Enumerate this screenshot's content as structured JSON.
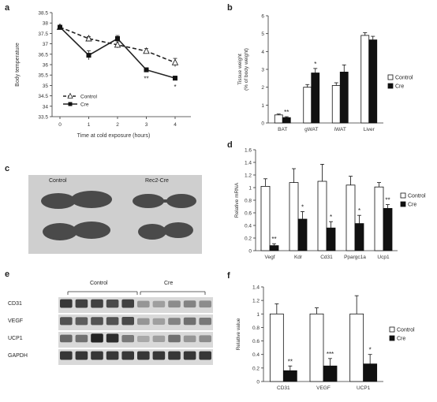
{
  "panel_labels": {
    "a": "a",
    "b": "b",
    "c": "c",
    "d": "d",
    "e": "e",
    "f": "f"
  },
  "chart_data": [
    {
      "id": "a",
      "type": "line",
      "xlabel": "Time at cold exposure (hours)",
      "ylabel": "Body temperature",
      "x": [
        0,
        1,
        2,
        3,
        4
      ],
      "xticks": [
        "0",
        "1",
        "2",
        "3",
        "4"
      ],
      "ylim": [
        33.5,
        38.5
      ],
      "yticks": [
        "33.5",
        "34",
        "34.5",
        "35",
        "35.5",
        "36",
        "36.5",
        "37",
        "37.5",
        "38",
        "38.5"
      ],
      "series": [
        {
          "name": "Control",
          "values": [
            37.8,
            37.25,
            36.95,
            36.65,
            36.1
          ],
          "errors": [
            0.08,
            0.1,
            0.15,
            0.12,
            0.2
          ],
          "style": "dashed",
          "marker": "triangle-open"
        },
        {
          "name": "Cre",
          "values": [
            37.8,
            36.45,
            37.25,
            35.75,
            35.35
          ],
          "errors": [
            0.08,
            0.22,
            0.15,
            0.1,
            0.1
          ],
          "style": "solid",
          "marker": "square-filled"
        }
      ],
      "annotations": [
        {
          "x": 3,
          "text": "**"
        },
        {
          "x": 4,
          "text": "*"
        }
      ],
      "legend": "bottom-left"
    },
    {
      "id": "b",
      "type": "bar",
      "ylabel": "Tissue weight\n(% of body weight)",
      "categories": [
        "BAT",
        "gWAT",
        "iWAT",
        "Liver"
      ],
      "ylim": [
        0,
        6
      ],
      "yticks": [
        "0",
        "1",
        "2",
        "3",
        "4",
        "5",
        "6"
      ],
      "series": [
        {
          "name": "Control",
          "values": [
            0.45,
            2.0,
            2.1,
            4.9
          ],
          "errors": [
            0.05,
            0.15,
            0.15,
            0.15
          ],
          "fill": "#ffffff"
        },
        {
          "name": "Cre",
          "values": [
            0.3,
            2.8,
            2.85,
            4.65
          ],
          "errors": [
            0.05,
            0.25,
            0.4,
            0.2
          ],
          "fill": "#111111"
        }
      ],
      "annotations": [
        {
          "category": "BAT",
          "text": "**"
        },
        {
          "category": "gWAT",
          "text": "*"
        }
      ],
      "legend": "right"
    },
    {
      "id": "d",
      "type": "bar",
      "ylabel": "Relative mRNA",
      "categories": [
        "Vegf",
        "Kdr",
        "Cd31",
        "Ppargc1a",
        "Ucp1"
      ],
      "ylim": [
        0,
        1.6
      ],
      "yticks": [
        "0",
        "0.2",
        "0.4",
        "0.6",
        "0.8",
        "1",
        "1.2",
        "1.4",
        "1.6"
      ],
      "series": [
        {
          "name": "Control",
          "values": [
            1.02,
            1.08,
            1.1,
            1.04,
            1.01
          ],
          "errors": [
            0.12,
            0.22,
            0.27,
            0.14,
            0.07
          ],
          "fill": "#ffffff"
        },
        {
          "name": "Cre",
          "values": [
            0.08,
            0.5,
            0.36,
            0.43,
            0.67
          ],
          "errors": [
            0.03,
            0.12,
            0.1,
            0.13,
            0.06
          ],
          "fill": "#111111"
        }
      ],
      "annotations": [
        {
          "category": "Vegf",
          "text": "**"
        },
        {
          "category": "Kdr",
          "text": "*"
        },
        {
          "category": "Cd31",
          "text": "*"
        },
        {
          "category": "Ppargc1a",
          "text": "*"
        },
        {
          "category": "Ucp1",
          "text": "**"
        }
      ],
      "legend": "right"
    },
    {
      "id": "f",
      "type": "bar",
      "ylabel": "Relative value",
      "categories": [
        "CD31",
        "VEGF",
        "UCP1"
      ],
      "ylim": [
        0,
        1.4
      ],
      "yticks": [
        "0",
        "0.2",
        "0.4",
        "0.6",
        "0.8",
        "1",
        "1.2",
        "1.4"
      ],
      "series": [
        {
          "name": "Control",
          "values": [
            1.0,
            1.0,
            1.0
          ],
          "errors": [
            0.15,
            0.09,
            0.27
          ],
          "fill": "#ffffff"
        },
        {
          "name": "Cre",
          "values": [
            0.16,
            0.23,
            0.26
          ],
          "errors": [
            0.07,
            0.11,
            0.14
          ],
          "fill": "#111111"
        }
      ],
      "annotations": [
        {
          "category": "CD31",
          "text": "**"
        },
        {
          "category": "VEGF",
          "text": "***"
        },
        {
          "category": "UCP1",
          "text": "*"
        }
      ],
      "legend": "right"
    }
  ],
  "photo_c": {
    "left_label": "Control",
    "right_label": "Rec2-Cre"
  },
  "blot_e": {
    "group_labels": {
      "control": "Control",
      "cre": "Cre"
    },
    "rows": [
      {
        "name": "CD31",
        "bands": [
          0.85,
          0.8,
          0.8,
          0.75,
          0.8,
          0.35,
          0.3,
          0.4,
          0.45,
          0.4
        ]
      },
      {
        "name": "VEGF",
        "bands": [
          0.7,
          0.65,
          0.7,
          0.7,
          0.75,
          0.35,
          0.3,
          0.45,
          0.55,
          0.5
        ]
      },
      {
        "name": "UCP1",
        "bands": [
          0.6,
          0.55,
          0.95,
          0.9,
          0.5,
          0.25,
          0.3,
          0.55,
          0.35,
          0.4
        ]
      },
      {
        "name": "GAPDH",
        "bands": [
          0.85,
          0.85,
          0.85,
          0.85,
          0.85,
          0.85,
          0.85,
          0.85,
          0.85,
          0.85
        ]
      }
    ]
  },
  "colors": {
    "control_fill": "#ffffff",
    "cre_fill": "#111111",
    "axis": "#333333",
    "band": "#1a1a1a",
    "tissue": "#4a4a4a"
  }
}
